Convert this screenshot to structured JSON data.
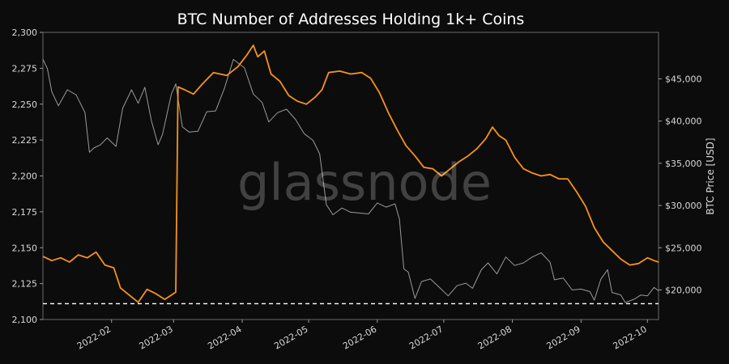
{
  "chart_data": {
    "type": "line",
    "title": "BTC Number of Addresses Holding 1k+ Coins",
    "watermark": "glassnode",
    "xlabel": "",
    "ylabel_left": "",
    "ylabel_right": "BTC Price [USD]",
    "x_range": [
      "2022-01-01",
      "2022-10-06"
    ],
    "x_ticks": [
      {
        "date": "2022-02-01",
        "label": "2022-02"
      },
      {
        "date": "2022-03-01",
        "label": "2022-03"
      },
      {
        "date": "2022-04-01",
        "label": "2022-04"
      },
      {
        "date": "2022-05-01",
        "label": "2022-05"
      },
      {
        "date": "2022-06-01",
        "label": "2022-06"
      },
      {
        "date": "2022-07-01",
        "label": "2022-07"
      },
      {
        "date": "2022-08-01",
        "label": "2022-08"
      },
      {
        "date": "2022-09-01",
        "label": "2022-09"
      },
      {
        "date": "2022-10-01",
        "label": "2022-10"
      }
    ],
    "y_left": {
      "range": [
        2100,
        2300
      ],
      "ticks": [
        {
          "value": 2100,
          "label": "2,100"
        },
        {
          "value": 2125,
          "label": "2,125"
        },
        {
          "value": 2150,
          "label": "2,150"
        },
        {
          "value": 2175,
          "label": "2,175"
        },
        {
          "value": 2200,
          "label": "2,200"
        },
        {
          "value": 2225,
          "label": "2,225"
        },
        {
          "value": 2250,
          "label": "2,250"
        },
        {
          "value": 2275,
          "label": "2,275"
        },
        {
          "value": 2300,
          "label": "2,300"
        }
      ]
    },
    "y_right": {
      "range": [
        16500,
        50500
      ],
      "ticks": [
        {
          "value": 20000,
          "label": "$20,000"
        },
        {
          "value": 25000,
          "label": "$25,000"
        },
        {
          "value": 30000,
          "label": "$30,000"
        },
        {
          "value": 35000,
          "label": "$35,000"
        },
        {
          "value": 40000,
          "label": "$40,000"
        },
        {
          "value": 45000,
          "label": "$45,000"
        }
      ]
    },
    "reference_line": {
      "axis": "left",
      "value": 2111,
      "style": "dashed",
      "color": "#ffffff"
    },
    "grid": false,
    "series": [
      {
        "axis": "left",
        "color": "#f7931a",
        "points": [
          [
            "2022-01-01",
            2144
          ],
          [
            "2022-01-05",
            2141
          ],
          [
            "2022-01-09",
            2143
          ],
          [
            "2022-01-13",
            2140
          ],
          [
            "2022-01-17",
            2145
          ],
          [
            "2022-01-21",
            2143
          ],
          [
            "2022-01-25",
            2147
          ],
          [
            "2022-01-29",
            2138
          ],
          [
            "2022-02-02",
            2136
          ],
          [
            "2022-02-05",
            2122
          ],
          [
            "2022-02-09",
            2117
          ],
          [
            "2022-02-13",
            2112
          ],
          [
            "2022-02-17",
            2121
          ],
          [
            "2022-02-21",
            2118
          ],
          [
            "2022-02-25",
            2114
          ],
          [
            "2022-02-28",
            2117
          ],
          [
            "2022-03-02",
            2119
          ],
          [
            "2022-03-03",
            2262
          ],
          [
            "2022-03-06",
            2260
          ],
          [
            "2022-03-10",
            2257
          ],
          [
            "2022-03-14",
            2264
          ],
          [
            "2022-03-19",
            2272
          ],
          [
            "2022-03-25",
            2270
          ],
          [
            "2022-03-30",
            2276
          ],
          [
            "2022-04-03",
            2284
          ],
          [
            "2022-04-06",
            2291
          ],
          [
            "2022-04-08",
            2283
          ],
          [
            "2022-04-11",
            2287
          ],
          [
            "2022-04-14",
            2271
          ],
          [
            "2022-04-18",
            2266
          ],
          [
            "2022-04-22",
            2256
          ],
          [
            "2022-04-26",
            2252
          ],
          [
            "2022-04-30",
            2250
          ],
          [
            "2022-05-04",
            2255
          ],
          [
            "2022-05-07",
            2260
          ],
          [
            "2022-05-10",
            2272
          ],
          [
            "2022-05-15",
            2273
          ],
          [
            "2022-05-20",
            2271
          ],
          [
            "2022-05-25",
            2272
          ],
          [
            "2022-05-29",
            2268
          ],
          [
            "2022-06-02",
            2258
          ],
          [
            "2022-06-06",
            2244
          ],
          [
            "2022-06-10",
            2232
          ],
          [
            "2022-06-14",
            2221
          ],
          [
            "2022-06-18",
            2214
          ],
          [
            "2022-06-22",
            2206
          ],
          [
            "2022-06-26",
            2205
          ],
          [
            "2022-06-30",
            2200
          ],
          [
            "2022-07-04",
            2205
          ],
          [
            "2022-07-08",
            2210
          ],
          [
            "2022-07-12",
            2214
          ],
          [
            "2022-07-16",
            2219
          ],
          [
            "2022-07-20",
            2226
          ],
          [
            "2022-07-23",
            2234
          ],
          [
            "2022-07-26",
            2228
          ],
          [
            "2022-07-29",
            2225
          ],
          [
            "2022-08-02",
            2213
          ],
          [
            "2022-08-06",
            2205
          ],
          [
            "2022-08-10",
            2202
          ],
          [
            "2022-08-14",
            2200
          ],
          [
            "2022-08-18",
            2201
          ],
          [
            "2022-08-22",
            2198
          ],
          [
            "2022-08-26",
            2198
          ],
          [
            "2022-08-30",
            2189
          ],
          [
            "2022-09-03",
            2179
          ],
          [
            "2022-09-07",
            2164
          ],
          [
            "2022-09-11",
            2154
          ],
          [
            "2022-09-15",
            2148
          ],
          [
            "2022-09-19",
            2142
          ],
          [
            "2022-09-23",
            2138
          ],
          [
            "2022-09-27",
            2139
          ],
          [
            "2022-10-01",
            2143
          ],
          [
            "2022-10-04",
            2141
          ],
          [
            "2022-10-06",
            2140
          ]
        ]
      },
      {
        "axis": "right",
        "color": "#9a9a9a",
        "points": [
          [
            "2022-01-01",
            47300
          ],
          [
            "2022-01-03",
            46200
          ],
          [
            "2022-01-05",
            43500
          ],
          [
            "2022-01-08",
            41800
          ],
          [
            "2022-01-12",
            43700
          ],
          [
            "2022-01-16",
            43100
          ],
          [
            "2022-01-20",
            41000
          ],
          [
            "2022-01-22",
            36300
          ],
          [
            "2022-01-24",
            36800
          ],
          [
            "2022-01-27",
            37200
          ],
          [
            "2022-01-30",
            38000
          ],
          [
            "2022-02-03",
            37000
          ],
          [
            "2022-02-06",
            41500
          ],
          [
            "2022-02-10",
            43700
          ],
          [
            "2022-02-13",
            42100
          ],
          [
            "2022-02-16",
            44000
          ],
          [
            "2022-02-19",
            40000
          ],
          [
            "2022-02-22",
            37200
          ],
          [
            "2022-02-24",
            38400
          ],
          [
            "2022-02-28",
            43200
          ],
          [
            "2022-03-02",
            44400
          ],
          [
            "2022-03-05",
            39300
          ],
          [
            "2022-03-08",
            38700
          ],
          [
            "2022-03-12",
            38800
          ],
          [
            "2022-03-16",
            41100
          ],
          [
            "2022-03-20",
            41200
          ],
          [
            "2022-03-24",
            43900
          ],
          [
            "2022-03-28",
            47300
          ],
          [
            "2022-04-02",
            46300
          ],
          [
            "2022-04-06",
            43200
          ],
          [
            "2022-04-10",
            42200
          ],
          [
            "2022-04-13",
            39900
          ],
          [
            "2022-04-17",
            41000
          ],
          [
            "2022-04-21",
            41400
          ],
          [
            "2022-04-25",
            40200
          ],
          [
            "2022-04-29",
            38500
          ],
          [
            "2022-05-03",
            37700
          ],
          [
            "2022-05-06",
            36100
          ],
          [
            "2022-05-09",
            30100
          ],
          [
            "2022-05-12",
            28900
          ],
          [
            "2022-05-16",
            29700
          ],
          [
            "2022-05-20",
            29200
          ],
          [
            "2022-05-24",
            29100
          ],
          [
            "2022-05-28",
            29000
          ],
          [
            "2022-06-01",
            30300
          ],
          [
            "2022-06-05",
            29800
          ],
          [
            "2022-06-09",
            30200
          ],
          [
            "2022-06-11",
            28400
          ],
          [
            "2022-06-13",
            22500
          ],
          [
            "2022-06-15",
            22100
          ],
          [
            "2022-06-18",
            19000
          ],
          [
            "2022-06-21",
            21000
          ],
          [
            "2022-06-25",
            21300
          ],
          [
            "2022-06-29",
            20300
          ],
          [
            "2022-07-03",
            19300
          ],
          [
            "2022-07-07",
            20500
          ],
          [
            "2022-07-11",
            20800
          ],
          [
            "2022-07-14",
            20200
          ],
          [
            "2022-07-18",
            22400
          ],
          [
            "2022-07-21",
            23200
          ],
          [
            "2022-07-25",
            21900
          ],
          [
            "2022-07-29",
            23900
          ],
          [
            "2022-08-02",
            22900
          ],
          [
            "2022-08-06",
            23200
          ],
          [
            "2022-08-10",
            23900
          ],
          [
            "2022-08-14",
            24400
          ],
          [
            "2022-08-18",
            23300
          ],
          [
            "2022-08-20",
            21200
          ],
          [
            "2022-08-24",
            21400
          ],
          [
            "2022-08-28",
            20000
          ],
          [
            "2022-09-01",
            20100
          ],
          [
            "2022-09-05",
            19800
          ],
          [
            "2022-09-07",
            18800
          ],
          [
            "2022-09-10",
            21300
          ],
          [
            "2022-09-13",
            22400
          ],
          [
            "2022-09-15",
            19700
          ],
          [
            "2022-09-19",
            19400
          ],
          [
            "2022-09-21",
            18500
          ],
          [
            "2022-09-25",
            18900
          ],
          [
            "2022-09-28",
            19400
          ],
          [
            "2022-10-01",
            19300
          ],
          [
            "2022-10-04",
            20300
          ],
          [
            "2022-10-06",
            19900
          ]
        ]
      }
    ]
  }
}
